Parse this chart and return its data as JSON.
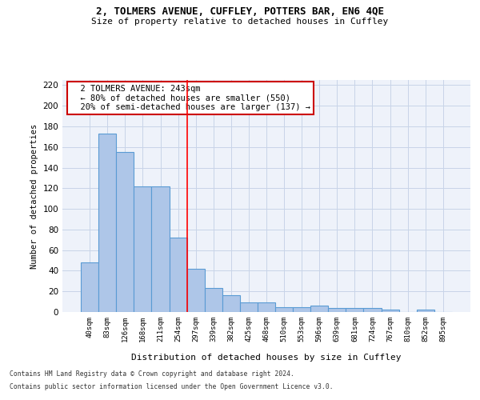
{
  "title1": "2, TOLMERS AVENUE, CUFFLEY, POTTERS BAR, EN6 4QE",
  "title2": "Size of property relative to detached houses in Cuffley",
  "xlabel": "Distribution of detached houses by size in Cuffley",
  "ylabel": "Number of detached properties",
  "categories": [
    "40sqm",
    "83sqm",
    "126sqm",
    "168sqm",
    "211sqm",
    "254sqm",
    "297sqm",
    "339sqm",
    "382sqm",
    "425sqm",
    "468sqm",
    "510sqm",
    "553sqm",
    "596sqm",
    "639sqm",
    "681sqm",
    "724sqm",
    "767sqm",
    "810sqm",
    "852sqm",
    "895sqm"
  ],
  "values": [
    48,
    173,
    155,
    122,
    122,
    72,
    42,
    23,
    16,
    9,
    9,
    5,
    5,
    6,
    4,
    4,
    4,
    2,
    0,
    2,
    0
  ],
  "bar_color": "#aec6e8",
  "bar_edge_color": "#5a9bd4",
  "red_line_x": 5.5,
  "annotation_title": "2 TOLMERS AVENUE: 243sqm",
  "annotation_line1": "← 80% of detached houses are smaller (550)",
  "annotation_line2": "20% of semi-detached houses are larger (137) →",
  "annotation_box_color": "#ffffff",
  "annotation_border_color": "#cc0000",
  "ylim": [
    0,
    225
  ],
  "yticks": [
    0,
    20,
    40,
    60,
    80,
    100,
    120,
    140,
    160,
    180,
    200,
    220
  ],
  "grid_color": "#c8d4e8",
  "background_color": "#eef2fa",
  "footer1": "Contains HM Land Registry data © Crown copyright and database right 2024.",
  "footer2": "Contains public sector information licensed under the Open Government Licence v3.0."
}
